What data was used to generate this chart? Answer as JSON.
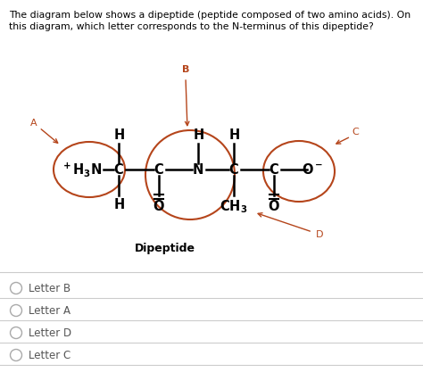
{
  "question_text_line1": "The diagram below shows a dipeptide (peptide composed of two amino acids). On",
  "question_text_line2": "this diagram, which letter corresponds to the N-terminus of this dipeptide?",
  "dipeptide_label": "Dipeptide",
  "choices": [
    "Letter B",
    "Letter A",
    "Letter D",
    "Letter C"
  ],
  "text_color": "#000000",
  "orange_color": "#b5451b",
  "molecule_color": "#000000",
  "bg_color": "#ffffff",
  "choice_text_color": "#555555",
  "divider_color": "#cccccc",
  "radio_color": "#aaaaaa"
}
